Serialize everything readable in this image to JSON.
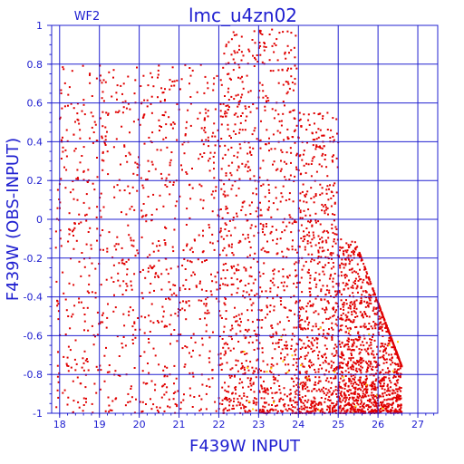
{
  "chart_data": {
    "type": "scatter",
    "title": "lmc_u4zn02",
    "corner_label": "WF2",
    "xlabel": "F439W INPUT",
    "ylabel": "F439W (OBS-INPUT)",
    "xlim": [
      17.8,
      27.5
    ],
    "ylim": [
      -1,
      1
    ],
    "grid": true,
    "x_ticks": [
      "18",
      "19",
      "20",
      "21",
      "22",
      "23",
      "24",
      "25",
      "26",
      "27"
    ],
    "y_ticks": [
      "1",
      "0.8",
      "0.6",
      "0.4",
      "0.2",
      "0",
      "-0.2",
      "-0.4",
      "-0.6",
      "-0.8",
      "-1"
    ],
    "colors": {
      "axes": "#2020d0",
      "points": "#e00000",
      "highlight": "#ffd000"
    },
    "density_profile": [
      {
        "x": [
          17.9,
          22.0
        ],
        "y_top": 0.8,
        "relative_density": 0.25
      },
      {
        "x": [
          22.0,
          24.0
        ],
        "y_top": 0.98,
        "relative_density": 0.55
      },
      {
        "x": [
          24.0,
          25.0
        ],
        "y_top": 0.55,
        "relative_density": 0.75
      },
      {
        "x": [
          25.0,
          26.6
        ],
        "y_top": -0.1,
        "relative_density": 0.9
      }
    ]
  }
}
